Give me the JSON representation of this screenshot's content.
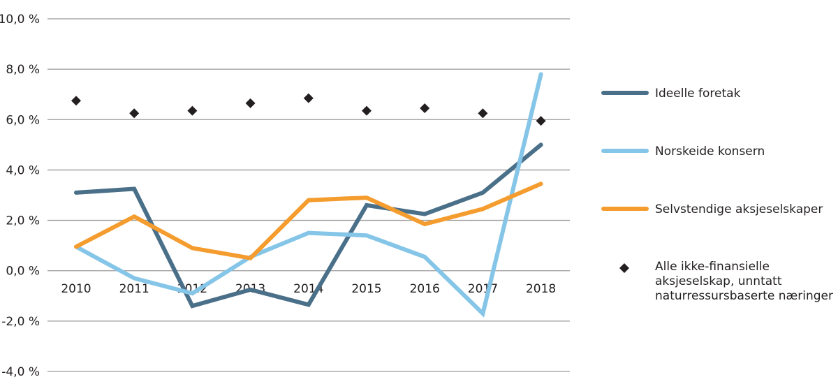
{
  "chart_data": {
    "type": "line",
    "title": "",
    "xlabel": "",
    "ylabel": "",
    "ylim": [
      -4.0,
      10.0
    ],
    "y_ticks": [
      10.0,
      8.0,
      6.0,
      4.0,
      2.0,
      0.0,
      -2.0,
      -4.0
    ],
    "y_tick_labels": [
      "10,0 %",
      "8,0 %",
      "6,0 %",
      "4,0 %",
      "2,0 %",
      "0,0 %",
      "-2,0 %",
      "-4,0 %"
    ],
    "categories": [
      "2010",
      "2011",
      "2012",
      "2013",
      "2014",
      "2015",
      "2016",
      "2017",
      "2018"
    ],
    "grid": true,
    "legend_position": "right",
    "series": [
      {
        "name": "Ideelle foretak",
        "style": "line",
        "color": "#4a6f88",
        "values": [
          3.1,
          3.25,
          -1.4,
          -0.75,
          -1.35,
          2.6,
          2.25,
          3.1,
          5.0
        ]
      },
      {
        "name": "Norskeide konsern",
        "style": "line",
        "color": "#85c5e7",
        "values": [
          0.95,
          -0.3,
          -0.9,
          0.55,
          1.5,
          1.4,
          0.55,
          -1.7,
          7.8
        ]
      },
      {
        "name": "Selvstendige aksjeselskaper",
        "style": "line",
        "color": "#f59c2e",
        "values": [
          0.95,
          2.15,
          0.9,
          0.5,
          2.8,
          2.9,
          1.85,
          2.45,
          3.45
        ]
      },
      {
        "name": "Alle ikke-finansielle aksjeselskap, unntatt naturressursbaserte næringer",
        "name_lines": [
          "Alle ikke-finansielle",
          "aksjeselskap, unntatt",
          "naturressursbaserte næringer"
        ],
        "style": "marker",
        "marker": "diamond",
        "color": "#231f20",
        "values": [
          6.75,
          6.25,
          6.35,
          6.65,
          6.85,
          6.35,
          6.45,
          6.25,
          5.95
        ]
      }
    ]
  }
}
